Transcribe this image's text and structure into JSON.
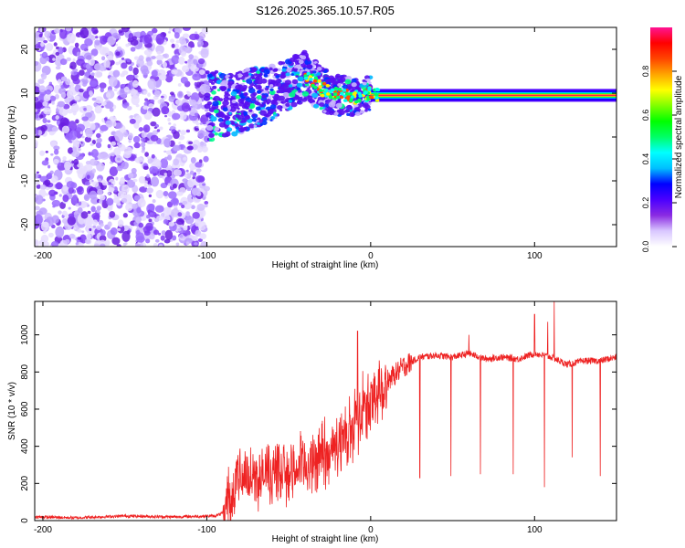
{
  "title": "S126.2025.365.10.57.R05",
  "chart_data": [
    {
      "type": "heatmap",
      "xlabel": "Height of straight line (km)",
      "ylabel": "Frequency (Hz)",
      "xlim": [
        -205,
        150
      ],
      "ylim": [
        -25,
        25
      ],
      "xticks": [
        -200,
        -100,
        0,
        100
      ],
      "yticks": [
        -20,
        -10,
        0,
        10,
        20
      ],
      "colorbar": {
        "label": "Normalized spectral amplitude",
        "range": [
          0,
          1
        ],
        "ticks": [
          "0.0",
          "0.2",
          "0.4",
          "0.6",
          "0.8"
        ],
        "colors": [
          "#ffffff",
          "#d9c7ff",
          "#8a2be2",
          "#4b00ff",
          "#0000ff",
          "#00bfff",
          "#00ffff",
          "#00ff66",
          "#00ff00",
          "#7fff00",
          "#ffff00",
          "#ffa500",
          "#ff4500",
          "#ff0000",
          "#ff1493"
        ]
      },
      "ridge": [
        {
          "x": -100,
          "y": 7
        },
        {
          "x": -80,
          "y": 8
        },
        {
          "x": -60,
          "y": 10
        },
        {
          "x": -40,
          "y": 14
        },
        {
          "x": -30,
          "y": 11
        },
        {
          "x": -20,
          "y": 9.5
        },
        {
          "x": -10,
          "y": 9
        },
        {
          "x": 0,
          "y": 10
        },
        {
          "x": 20,
          "y": 9
        },
        {
          "x": 50,
          "y": 9.5
        },
        {
          "x": 100,
          "y": 9.5
        },
        {
          "x": 150,
          "y": 9
        }
      ],
      "noise_region": {
        "x_from": -205,
        "x_to": -100
      }
    },
    {
      "type": "line",
      "xlabel": "Height of straight line (km)",
      "ylabel": "SNR (10 * v/v)",
      "xlim": [
        -205,
        150
      ],
      "ylim": [
        0,
        1180
      ],
      "xticks": [
        -200,
        -100,
        0,
        100
      ],
      "yticks": [
        0,
        200,
        400,
        600,
        800,
        1000
      ],
      "color": "#ee2222",
      "series": [
        {
          "x": [
            -205,
            -180,
            -150,
            -120,
            -95,
            -90,
            -85,
            -80,
            -70,
            -60,
            -50,
            -40,
            -30,
            -20,
            -15,
            -10,
            -5,
            0,
            5,
            10,
            20,
            30,
            40,
            50,
            60,
            70,
            80,
            90,
            100,
            110,
            120,
            130,
            140,
            150
          ],
          "values": [
            20,
            15,
            25,
            20,
            25,
            40,
            150,
            250,
            230,
            250,
            260,
            300,
            320,
            400,
            450,
            500,
            580,
            620,
            700,
            750,
            830,
            880,
            890,
            880,
            900,
            870,
            880,
            870,
            900,
            880,
            840,
            860,
            860,
            880
          ]
        }
      ],
      "dips": [
        {
          "x": 30,
          "y": 230
        },
        {
          "x": 49,
          "y": 240
        },
        {
          "x": 67,
          "y": 250
        },
        {
          "x": 87,
          "y": 250
        },
        {
          "x": 106,
          "y": 180
        },
        {
          "x": 123,
          "y": 340
        },
        {
          "x": 140,
          "y": 240
        }
      ],
      "spikes": [
        {
          "x": -8,
          "y": 1020
        },
        {
          "x": 60,
          "y": 1000
        },
        {
          "x": 100,
          "y": 1110
        },
        {
          "x": 108,
          "y": 1070
        },
        {
          "x": 112,
          "y": 1180
        }
      ]
    }
  ]
}
